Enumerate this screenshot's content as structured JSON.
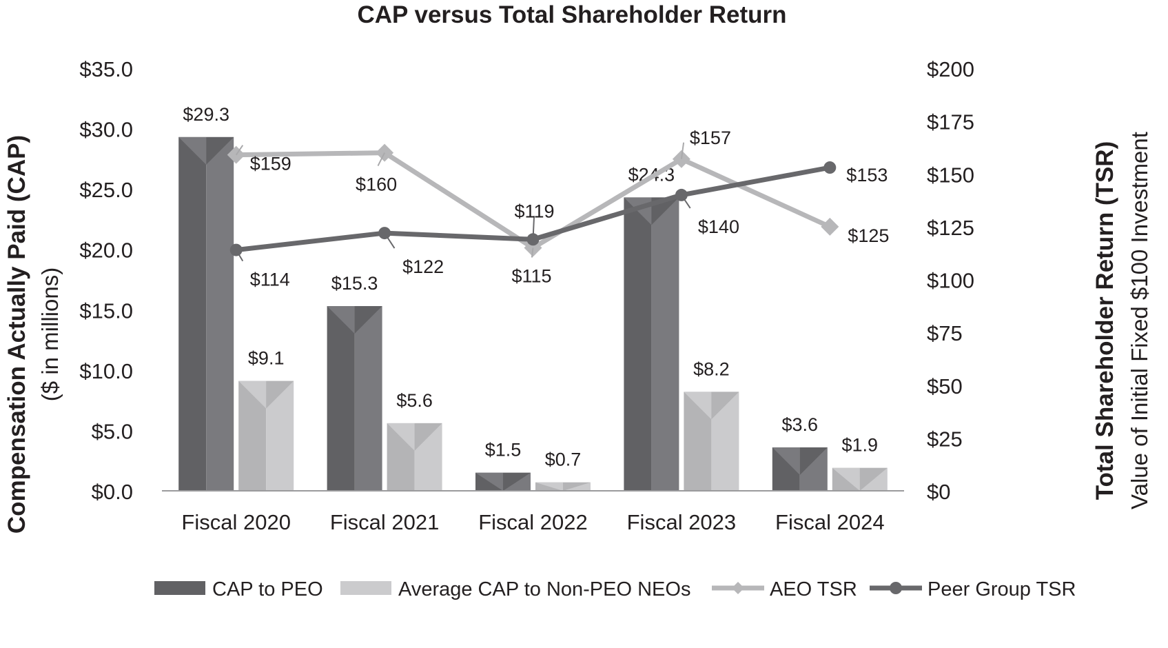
{
  "chart_data": {
    "type": "bar",
    "title": "CAP versus Total Shareholder Return",
    "categories": [
      "Fiscal 2020",
      "Fiscal 2021",
      "Fiscal 2022",
      "Fiscal 2023",
      "Fiscal 2024"
    ],
    "y_left": {
      "label": "Compensation Actually Paid (CAP)",
      "sublabel": "($ in millions)",
      "range": [
        0,
        35
      ],
      "ticks": [
        "$0.0",
        "$5.0",
        "$10.0",
        "$15.0",
        "$20.0",
        "$25.0",
        "$30.0",
        "$35.0"
      ]
    },
    "y_right": {
      "label": "Total Shareholder Return (TSR)",
      "sublabel": "Value of Initial Fixed $100 Investment",
      "range": [
        0,
        200
      ],
      "ticks": [
        "$0",
        "$25",
        "$50",
        "$75",
        "$100",
        "$125",
        "$150",
        "$175",
        "$200"
      ]
    },
    "bar_series": [
      {
        "name": "CAP to PEO",
        "values": [
          29.3,
          15.3,
          1.5,
          24.3,
          3.6
        ],
        "labels": [
          "$29.3",
          "$15.3",
          "$1.5",
          "$24.3",
          "$3.6"
        ],
        "color_dark": "#616164",
        "color_light": "#7a7a7e"
      },
      {
        "name": "Average CAP to Non-PEO NEOs",
        "values": [
          9.1,
          5.6,
          0.7,
          8.2,
          1.9
        ],
        "labels": [
          "$9.1",
          "$5.6",
          "$0.7",
          "$8.2",
          "$1.9"
        ],
        "color_dark": "#b4b4b6",
        "color_light": "#cbcbcd"
      }
    ],
    "line_series": [
      {
        "name": "AEO TSR",
        "values": [
          159,
          160,
          115,
          157,
          125
        ],
        "labels": [
          "$159",
          "$160",
          "$115",
          "$157",
          "$125"
        ],
        "color": "#b7b7b9",
        "marker": "diamond"
      },
      {
        "name": "Peer Group TSR",
        "values": [
          114,
          122,
          119,
          140,
          153
        ],
        "labels": [
          "$114",
          "$122",
          "$119",
          "$140",
          "$153"
        ],
        "color": "#68686b",
        "marker": "circle"
      }
    ],
    "legend_position": "bottom",
    "grid": false
  }
}
